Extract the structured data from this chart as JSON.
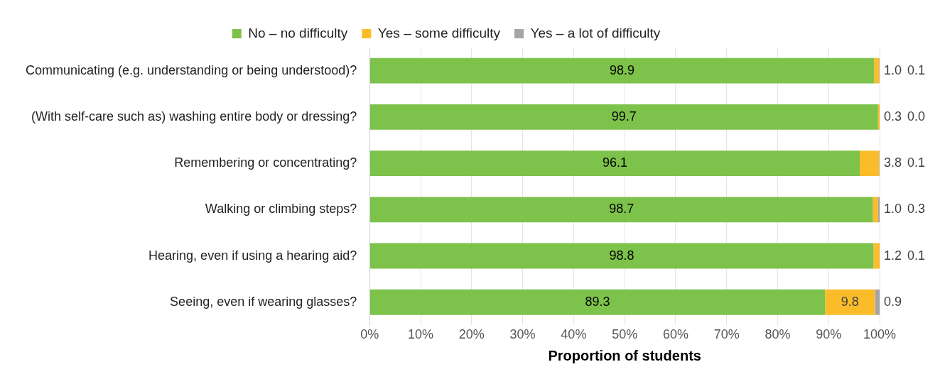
{
  "chart_data": {
    "type": "bar",
    "orientation": "horizontal",
    "stacked": true,
    "xlabel": "Proportion of students",
    "categories": [
      "Communicating (e.g. understanding or being understood)?",
      "(With self-care such as) washing entire body or dressing?",
      "Remembering or concentrating?",
      "Walking or climbing steps?",
      "Hearing, even if using a hearing aid?",
      "Seeing, even if wearing glasses?"
    ],
    "series": [
      {
        "name": "No – no difficulty",
        "color": "#7dc24b",
        "values": [
          98.9,
          99.7,
          96.1,
          98.7,
          98.8,
          89.3
        ],
        "value_labels": [
          "98.9",
          "99.7",
          "96.1",
          "98.7",
          "98.8",
          "89.3"
        ]
      },
      {
        "name": "Yes – some difficulty",
        "color": "#fbbc2a",
        "values": [
          1.0,
          0.3,
          3.8,
          1.0,
          1.2,
          9.8
        ],
        "value_labels": [
          "1.0",
          "0.3",
          "3.8",
          "1.0",
          "1.2",
          "9.8"
        ]
      },
      {
        "name": "Yes – a lot of difficulty",
        "color": "#a5a5a5",
        "values": [
          0.1,
          0.0,
          0.1,
          0.3,
          0.1,
          0.9
        ],
        "value_labels": [
          "0.1",
          "0.0",
          "0.1",
          "0.3",
          "0.1",
          "0.9"
        ]
      }
    ],
    "xlim": [
      0,
      100
    ],
    "xticks": [
      {
        "value": 0,
        "label": "0%"
      },
      {
        "value": 10,
        "label": "10%"
      },
      {
        "value": 20,
        "label": "20%"
      },
      {
        "value": 30,
        "label": "30%"
      },
      {
        "value": 40,
        "label": "40%"
      },
      {
        "value": 50,
        "label": "50%"
      },
      {
        "value": 60,
        "label": "60%"
      },
      {
        "value": 70,
        "label": "70%"
      },
      {
        "value": 80,
        "label": "80%"
      },
      {
        "value": 90,
        "label": "90%"
      },
      {
        "value": 100,
        "label": "100%"
      }
    ],
    "grid": "x",
    "legend": "top"
  }
}
